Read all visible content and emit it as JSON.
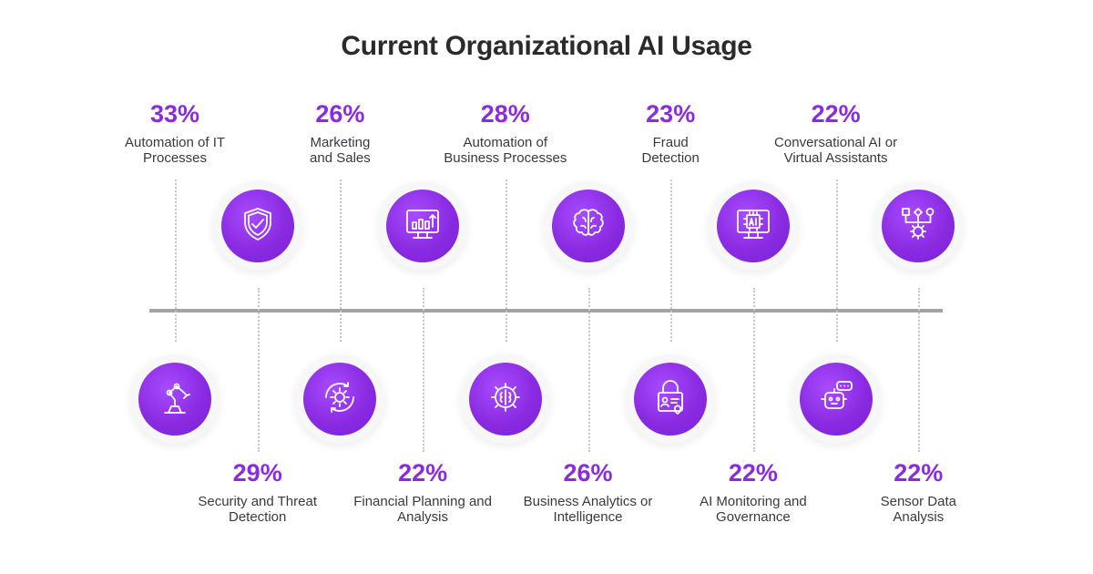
{
  "chart_data": {
    "type": "timeline-infographic",
    "title": "Current Organizational AI Usage",
    "unit": "%",
    "items": [
      {
        "category": "Automation of IT\nProcesses",
        "value": 33,
        "label": "33%",
        "position": "top",
        "icon": "robot-arm-icon"
      },
      {
        "category": "Security and Threat\nDetection",
        "value": 29,
        "label": "29%",
        "position": "bottom",
        "icon": "shield-check-icon"
      },
      {
        "category": "Marketing\nand Sales",
        "value": 26,
        "label": "26%",
        "position": "top",
        "icon": "gear-cycle-icon"
      },
      {
        "category": "Financial Planning and\nAnalysis",
        "value": 22,
        "label": "22%",
        "position": "bottom",
        "icon": "monitor-chart-icon"
      },
      {
        "category": "Automation of\nBusiness Processes",
        "value": 28,
        "label": "28%",
        "position": "top",
        "icon": "gear-brain-icon"
      },
      {
        "category": "Business Analytics or\nIntelligence",
        "value": 26,
        "label": "26%",
        "position": "bottom",
        "icon": "brain-icon"
      },
      {
        "category": "Fraud\nDetection",
        "value": 23,
        "label": "23%",
        "position": "top",
        "icon": "lock-id-icon"
      },
      {
        "category": "AI Monitoring and\nGovernance",
        "value": 22,
        "label": "22%",
        "position": "bottom",
        "icon": "ai-monitor-icon"
      },
      {
        "category": "Conversational AI or\nVirtual Assistants",
        "value": 22,
        "label": "22%",
        "position": "top",
        "icon": "chatbot-icon"
      },
      {
        "category": "Sensor Data\nAnalysis",
        "value": 22,
        "label": "22%",
        "position": "bottom",
        "icon": "flow-gear-icon"
      }
    ]
  },
  "colors": {
    "accent": "#8a2be2",
    "axis": "#a3a3a3",
    "text": "#3a3a3a"
  }
}
